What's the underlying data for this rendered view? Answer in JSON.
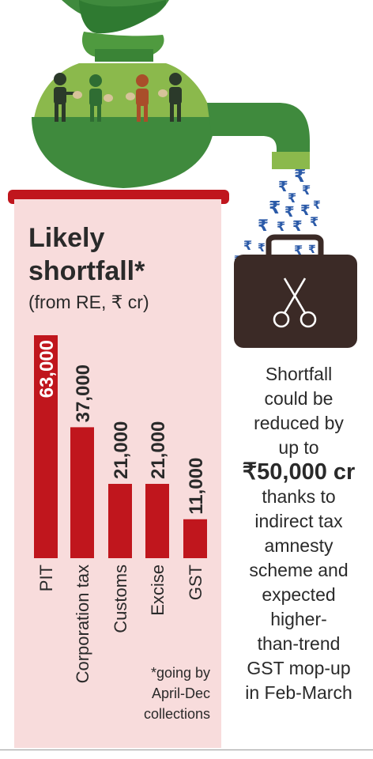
{
  "chart_data": {
    "type": "bar",
    "title": "Likely shortfall",
    "title_mark": "*",
    "subtitle": "(from RE, ₹ cr)",
    "categories": [
      "PIT",
      "Corporation tax",
      "Customs",
      "Excise",
      "GST"
    ],
    "values": [
      63000,
      37000,
      21000,
      21000,
      11000
    ],
    "value_labels": [
      "63,000",
      "37,000",
      "21,000",
      "21,000",
      "11,000"
    ],
    "ylim": [
      0,
      63000
    ],
    "grid": false,
    "bar_color": "#c0161d",
    "footnote": [
      "*going by",
      "April-Dec",
      "collections"
    ]
  },
  "side_text": {
    "before": [
      "Shortfall",
      "could be",
      "reduced by",
      "up to"
    ],
    "highlight": "₹50,000 cr",
    "after": [
      "thanks to",
      "indirect tax",
      "amnesty",
      "scheme and",
      "expected",
      "higher-",
      "than-trend",
      "GST mop-up",
      "in Feb-March"
    ]
  },
  "illustration": {
    "rupee_symbol": "₹",
    "icons": [
      "money-bag-icon",
      "person-icon",
      "briefcase-icon",
      "scissors-icon",
      "rupee-icon"
    ]
  },
  "colors": {
    "panel": "#f8dcdc",
    "bar": "#c0161d",
    "bag_light": "#8bb94c",
    "bag_dark": "#3f8a3d",
    "briefcase": "#3b2a26",
    "rupee": "#2b5aa8"
  }
}
